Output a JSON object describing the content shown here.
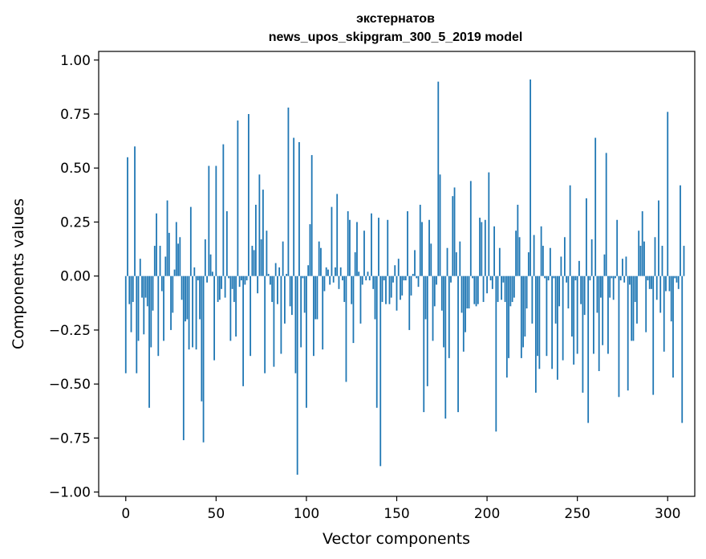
{
  "chart_data": {
    "type": "bar",
    "title": [
      "экстернатов",
      "news_upos_skipgram_300_5_2019 model"
    ],
    "xlabel": "Vector components",
    "ylabel": "Components values",
    "xlim": [
      -15,
      315
    ],
    "ylim": [
      -1.02,
      1.04
    ],
    "x_ticks": [
      0,
      50,
      100,
      150,
      200,
      250,
      300
    ],
    "y_ticks": [
      -1.0,
      -0.75,
      -0.5,
      -0.25,
      0.0,
      0.25,
      0.5,
      0.75,
      1.0
    ],
    "y_tick_labels": [
      "−1.00",
      "−0.75",
      "−0.50",
      "−0.25",
      "0.00",
      "0.25",
      "0.50",
      "0.75",
      "1.00"
    ],
    "grid": false,
    "legend": "none",
    "bar_color": "#1f77b4",
    "values": [
      -0.45,
      0.55,
      -0.13,
      -0.26,
      -0.12,
      0.6,
      -0.45,
      -0.3,
      0.08,
      -0.1,
      -0.27,
      -0.1,
      -0.14,
      -0.61,
      -0.33,
      -0.16,
      0.14,
      0.29,
      -0.37,
      0.14,
      -0.07,
      -0.3,
      0.09,
      0.35,
      0.2,
      -0.25,
      -0.17,
      0.03,
      0.25,
      0.15,
      0.18,
      -0.11,
      -0.76,
      -0.21,
      -0.2,
      -0.34,
      0.32,
      -0.33,
      0.04,
      -0.34,
      -0.02,
      -0.2,
      -0.58,
      -0.77,
      0.17,
      -0.03,
      0.51,
      0.1,
      0.02,
      -0.39,
      0.51,
      -0.12,
      -0.11,
      -0.06,
      0.61,
      -0.1,
      0.3,
      -0.01,
      -0.3,
      -0.06,
      -0.12,
      -0.28,
      0.72,
      -0.05,
      -0.02,
      -0.51,
      -0.04,
      -0.02,
      0.75,
      -0.37,
      0.14,
      0.12,
      0.33,
      -0.08,
      0.47,
      0.17,
      0.4,
      -0.45,
      0.21,
      0.01,
      -0.04,
      -0.12,
      -0.42,
      0.06,
      -0.13,
      0.04,
      -0.36,
      0.16,
      -0.22,
      0.01,
      0.78,
      -0.14,
      -0.18,
      0.64,
      -0.45,
      -0.92,
      0.62,
      -0.33,
      -0.01,
      -0.17,
      -0.61,
      0.05,
      0.24,
      0.56,
      -0.37,
      -0.2,
      -0.2,
      0.16,
      0.13,
      -0.34,
      -0.07,
      0.04,
      0.03,
      -0.04,
      0.32,
      -0.03,
      0.04,
      0.38,
      -0.06,
      0.04,
      -0.02,
      -0.12,
      -0.49,
      0.3,
      0.26,
      -0.13,
      -0.31,
      0.11,
      0.25,
      0.02,
      -0.22,
      -0.04,
      0.21,
      -0.02,
      0.02,
      -0.02,
      0.29,
      -0.06,
      -0.2,
      -0.61,
      0.27,
      -0.88,
      -0.12,
      -0.02,
      -0.13,
      0.26,
      -0.13,
      -0.1,
      -0.03,
      0.05,
      -0.16,
      0.08,
      -0.11,
      -0.09,
      -0.02,
      -0.02,
      0.3,
      -0.25,
      -0.09,
      0.01,
      0.12,
      -0.01,
      -0.05,
      0.33,
      0.25,
      -0.63,
      -0.2,
      -0.51,
      0.26,
      0.15,
      -0.3,
      -0.14,
      -0.04,
      0.9,
      0.47,
      -0.16,
      -0.33,
      -0.66,
      0.13,
      -0.38,
      -0.03,
      0.37,
      0.41,
      0.11,
      -0.63,
      0.16,
      -0.17,
      -0.35,
      -0.26,
      -0.15,
      -0.15,
      0.44,
      -0.01,
      -0.13,
      -0.14,
      -0.13,
      0.27,
      0.25,
      -0.12,
      0.26,
      -0.08,
      0.48,
      -0.02,
      -0.06,
      0.23,
      -0.72,
      -0.12,
      0.13,
      -0.11,
      -0.03,
      -0.12,
      -0.47,
      -0.38,
      -0.14,
      -0.12,
      -0.1,
      0.21,
      0.33,
      0.18,
      -0.38,
      -0.33,
      -0.28,
      -0.15,
      0.11,
      0.91,
      -0.22,
      0.19,
      -0.54,
      -0.37,
      -0.43,
      0.23,
      0.14,
      -0.01,
      -0.37,
      -0.02,
      0.13,
      -0.43,
      -0.01,
      -0.22,
      -0.48,
      -0.14,
      0.09,
      -0.39,
      0.18,
      -0.03,
      -0.15,
      0.42,
      -0.28,
      -0.41,
      -0.02,
      -0.36,
      0.07,
      -0.13,
      -0.54,
      -0.18,
      0.36,
      -0.68,
      -0.02,
      0.17,
      -0.36,
      0.64,
      -0.17,
      -0.44,
      -0.1,
      -0.32,
      0.1,
      0.57,
      -0.36,
      -0.1,
      -0.01,
      -0.11,
      -0.01,
      0.26,
      -0.56,
      -0.02,
      0.08,
      -0.03,
      0.09,
      -0.53,
      -0.04,
      -0.3,
      -0.3,
      -0.12,
      -0.22,
      0.21,
      0.14,
      0.3,
      0.16,
      -0.26,
      -0.02,
      -0.06,
      -0.06,
      -0.55,
      0.18,
      -0.11,
      0.35,
      -0.17,
      0.14,
      -0.35,
      -0.07,
      0.76,
      -0.07,
      -0.21,
      -0.47,
      -0.01,
      -0.03,
      -0.06,
      0.42,
      -0.68,
      0.14
    ]
  }
}
